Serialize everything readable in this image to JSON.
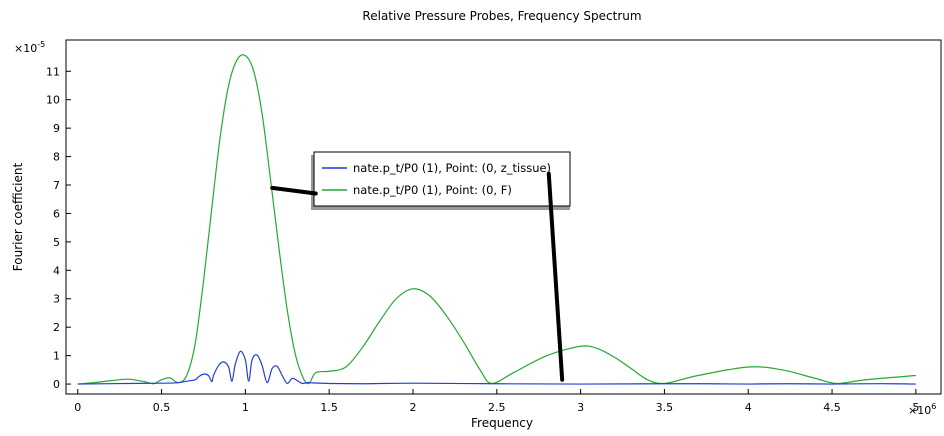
{
  "chart_data": {
    "type": "line",
    "title": "Relative Pressure Probes, Frequency Spectrum",
    "xlabel": "Frequency",
    "ylabel": "Fourier coefficient",
    "x_multiplier": "×10",
    "x_exponent": "6",
    "y_multiplier": "×10",
    "y_exponent": "-5",
    "xlim": [
      -0.07,
      5.15
    ],
    "ylim": [
      -0.35,
      12.1
    ],
    "x_ticks": [
      "0",
      "0.5",
      "1",
      "1.5",
      "2",
      "2.5",
      "3",
      "3.5",
      "4",
      "4.5",
      "5"
    ],
    "y_ticks": [
      "0",
      "1",
      "2",
      "3",
      "4",
      "5",
      "6",
      "7",
      "8",
      "9",
      "10",
      "11"
    ],
    "grid": false,
    "legend_position": "upper center",
    "series": [
      {
        "name": "nate.p_t/P0 (1), Point: (0, z_tissue)",
        "color": "#1f3fd8",
        "x": [
          0,
          0.5,
          0.6,
          0.65,
          0.7,
          0.72,
          0.75,
          0.78,
          0.8,
          0.81,
          0.84,
          0.87,
          0.9,
          0.92,
          0.94,
          0.97,
          1.0,
          1.02,
          1.04,
          1.07,
          1.1,
          1.13,
          1.16,
          1.19,
          1.22,
          1.25,
          1.28,
          1.31,
          1.34,
          1.37,
          1.4,
          1.5,
          1.7,
          2.0,
          2.5,
          3.0,
          3.5,
          4.0,
          4.5,
          5.0
        ],
        "y": [
          0,
          0.03,
          0.05,
          0.1,
          0.15,
          0.25,
          0.35,
          0.3,
          0.08,
          0.3,
          0.65,
          0.78,
          0.6,
          0.1,
          0.7,
          1.15,
          0.85,
          0.1,
          0.85,
          1.02,
          0.65,
          0.05,
          0.55,
          0.62,
          0.3,
          0.02,
          0.2,
          0.12,
          0.02,
          0.05,
          0.04,
          0.02,
          0.01,
          0.03,
          0.01,
          0.0,
          0.01,
          0.0,
          0.0,
          0.0
        ]
      },
      {
        "name": "nate.p_t/P0 (1), Point: (0, F)",
        "color": "#22aa33",
        "x": [
          0,
          0.1,
          0.2,
          0.3,
          0.4,
          0.45,
          0.5,
          0.55,
          0.6,
          0.65,
          0.7,
          0.75,
          0.8,
          0.85,
          0.9,
          0.95,
          1.0,
          1.05,
          1.1,
          1.15,
          1.2,
          1.25,
          1.3,
          1.35,
          1.38,
          1.42,
          1.5,
          1.6,
          1.7,
          1.8,
          1.9,
          2.0,
          2.1,
          2.2,
          2.3,
          2.4,
          2.47,
          2.6,
          2.8,
          3.0,
          3.1,
          3.2,
          3.3,
          3.4,
          3.5,
          3.7,
          4.0,
          4.2,
          4.4,
          4.53,
          4.7,
          5.0
        ],
        "y": [
          0,
          0.05,
          0.12,
          0.17,
          0.08,
          0.01,
          0.15,
          0.22,
          0.05,
          0.3,
          1.4,
          3.6,
          6.2,
          8.7,
          10.5,
          11.4,
          11.55,
          11.0,
          9.5,
          7.2,
          4.8,
          2.6,
          1.0,
          0.15,
          0.02,
          0.4,
          0.45,
          0.6,
          1.3,
          2.2,
          3.0,
          3.35,
          3.1,
          2.4,
          1.5,
          0.5,
          0.02,
          0.4,
          1.0,
          1.33,
          1.25,
          0.95,
          0.55,
          0.15,
          0.02,
          0.3,
          0.6,
          0.5,
          0.2,
          0.02,
          0.15,
          0.3
        ]
      }
    ]
  },
  "annotations": [
    {
      "name": "annotation-stroke-left",
      "color": "#000000",
      "x": [
        1.16,
        1.42
      ],
      "y": [
        6.9,
        6.7
      ]
    },
    {
      "name": "annotation-stroke-right",
      "color": "#000000",
      "x": [
        2.81,
        2.89
      ],
      "y": [
        7.4,
        0.15
      ]
    }
  ]
}
